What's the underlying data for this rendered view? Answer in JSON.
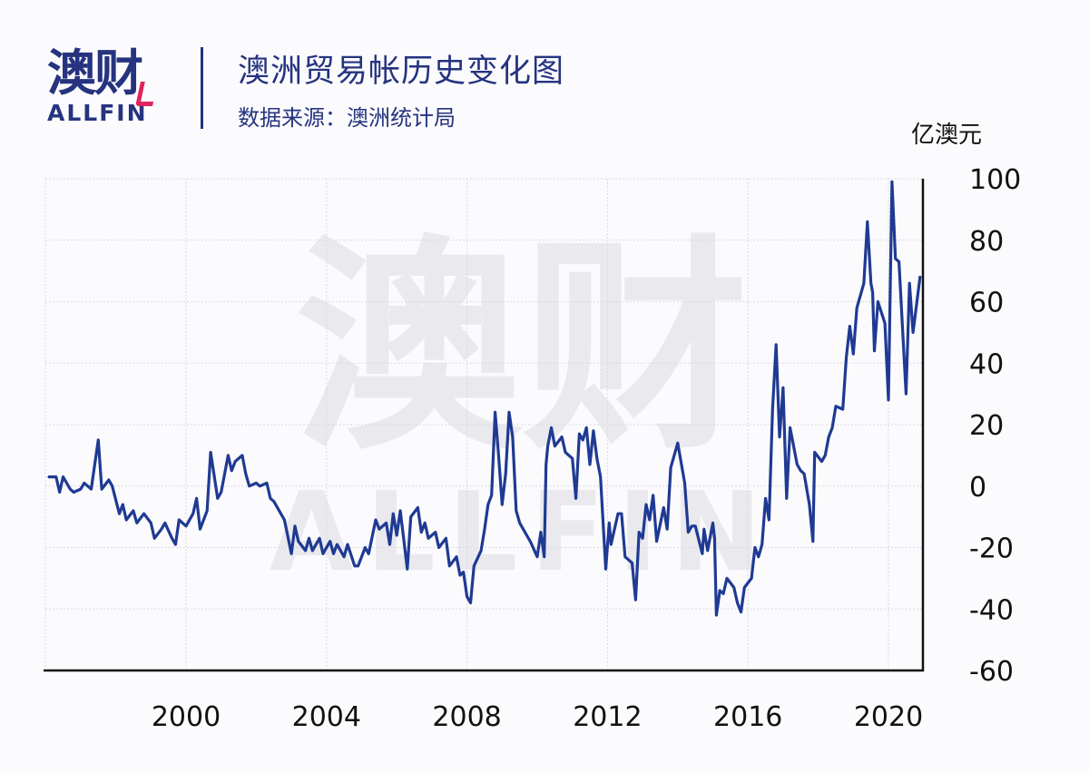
{
  "header": {
    "logo_cn": "澳财",
    "logo_en": "ALLFIN",
    "title": "澳洲贸易帐历史变化图",
    "subtitle": "数据来源：澳洲统计局"
  },
  "watermark": {
    "cn": "澳财",
    "en": "ALLFIN"
  },
  "colors": {
    "brand": "#26337f",
    "accent": "#e0245e",
    "line": "#1f3a93",
    "grid": "#d9d9e0",
    "watermark": "#e9e9ee"
  },
  "chart_data": {
    "type": "line",
    "title": "澳洲贸易帐历史变化图",
    "subtitle": "数据来源：澳洲统计局",
    "xlabel": "",
    "ylabel": "亿澳元",
    "ylim": [
      -60,
      100
    ],
    "xlim": [
      1996.0,
      2021.0
    ],
    "yticks": [
      100,
      80,
      60,
      40,
      20,
      0,
      -20,
      -40,
      -60
    ],
    "ytick_labels": [
      "100",
      "80",
      "60",
      "40",
      "20",
      "0",
      "-20",
      "-40",
      "-60"
    ],
    "xticks": [
      2000,
      2004,
      2008,
      2012,
      2016,
      2020
    ],
    "xtick_labels": [
      "2000",
      "2004",
      "2008",
      "2012",
      "2016",
      "2020"
    ],
    "y_axis_position": "right",
    "grid": true,
    "legend": null,
    "series": [
      {
        "name": "澳洲贸易帐",
        "x": [
          1996.1,
          1996.3,
          1996.4,
          1996.5,
          1996.7,
          1996.8,
          1997.0,
          1997.1,
          1997.3,
          1997.5,
          1997.6,
          1997.8,
          1997.9,
          1998.1,
          1998.2,
          1998.3,
          1998.5,
          1998.6,
          1998.8,
          1999.0,
          1999.1,
          1999.3,
          1999.4,
          1999.6,
          1999.7,
          1999.8,
          2000.0,
          2000.2,
          2000.3,
          2000.4,
          2000.6,
          2000.7,
          2000.9,
          2001.0,
          2001.2,
          2001.3,
          2001.4,
          2001.6,
          2001.7,
          2001.8,
          2002.0,
          2002.1,
          2002.3,
          2002.4,
          2002.5,
          2002.7,
          2002.8,
          2003.0,
          2003.1,
          2003.2,
          2003.4,
          2003.5,
          2003.6,
          2003.8,
          2003.9,
          2004.1,
          2004.2,
          2004.3,
          2004.5,
          2004.6,
          2004.8,
          2004.9,
          2005.1,
          2005.2,
          2005.4,
          2005.5,
          2005.7,
          2005.8,
          2005.9,
          2006.0,
          2006.1,
          2006.3,
          2006.4,
          2006.6,
          2006.7,
          2006.8,
          2006.9,
          2007.1,
          2007.2,
          2007.4,
          2007.5,
          2007.7,
          2007.8,
          2007.9,
          2008.0,
          2008.1,
          2008.2,
          2008.4,
          2008.5,
          2008.6,
          2008.7,
          2008.8,
          2008.9,
          2009.0,
          2009.1,
          2009.2,
          2009.3,
          2009.4,
          2009.5,
          2009.7,
          2009.8,
          2010.0,
          2010.1,
          2010.2,
          2010.25,
          2010.3,
          2010.4,
          2010.5,
          2010.7,
          2010.8,
          2011.0,
          2011.1,
          2011.2,
          2011.3,
          2011.4,
          2011.5,
          2011.6,
          2011.7,
          2011.8,
          2011.95,
          2012.05,
          2012.1,
          2012.3,
          2012.4,
          2012.5,
          2012.7,
          2012.8,
          2012.9,
          2013.0,
          2013.1,
          2013.2,
          2013.3,
          2013.4,
          2013.6,
          2013.7,
          2013.8,
          2014.0,
          2014.2,
          2014.3,
          2014.4,
          2014.5,
          2014.7,
          2014.75,
          2014.85,
          2015.0,
          2015.05,
          2015.1,
          2015.2,
          2015.3,
          2015.4,
          2015.6,
          2015.7,
          2015.8,
          2015.9,
          2016.1,
          2016.2,
          2016.3,
          2016.4,
          2016.5,
          2016.6,
          2016.7,
          2016.8,
          2016.9,
          2017.0,
          2017.1,
          2017.2,
          2017.4,
          2017.5,
          2017.6,
          2017.75,
          2017.85,
          2017.9,
          2018.1,
          2018.2,
          2018.3,
          2018.4,
          2018.5,
          2018.7,
          2018.8,
          2018.9,
          2019.0,
          2019.1,
          2019.3,
          2019.4,
          2019.5,
          2019.55,
          2019.6,
          2019.7,
          2019.9,
          2020.0,
          2020.1,
          2020.2,
          2020.3,
          2020.5,
          2020.6,
          2020.7,
          2020.9
        ],
        "values": [
          3,
          3,
          -2,
          3,
          -1,
          -2,
          -1,
          1,
          -1,
          15,
          -1,
          2,
          0,
          -9,
          -6,
          -11,
          -8,
          -12,
          -9,
          -12,
          -17,
          -14,
          -12,
          -17,
          -19,
          -11,
          -13,
          -9,
          -4,
          -14,
          -8,
          11,
          -4,
          -2,
          10,
          5,
          8,
          10,
          4,
          0,
          1,
          0,
          1,
          -4,
          -5,
          -9,
          -11,
          -22,
          -13,
          -18,
          -21,
          -17,
          -21,
          -17,
          -22,
          -18,
          -22,
          -19,
          -23,
          -19,
          -26,
          -26,
          -20,
          -22,
          -11,
          -14,
          -12,
          -19,
          -9,
          -16,
          -8,
          -27,
          -10,
          -7,
          -15,
          -12,
          -17,
          -15,
          -20,
          -17,
          -26,
          -23,
          -29,
          -28,
          -36,
          -38,
          -26,
          -21,
          -14,
          -6,
          -3,
          24,
          10,
          -6,
          4,
          24,
          16,
          -8,
          -12,
          -16,
          -18,
          -23,
          -15,
          -23,
          7,
          13,
          19,
          13,
          16,
          11,
          9,
          -4,
          17,
          15,
          19,
          7,
          18,
          9,
          3,
          -27,
          -12,
          -19,
          -9,
          -9,
          -23,
          -25,
          -37,
          -15,
          -17,
          -6,
          -11,
          -3,
          -18,
          -7,
          -14,
          6,
          14,
          1,
          -15,
          -13,
          -13,
          -22,
          -14,
          -21,
          -12,
          -17,
          -42,
          -34,
          -35,
          -30,
          -33,
          -38,
          -41,
          -33,
          -30,
          -20,
          -23,
          -19,
          -4,
          -11,
          25,
          46,
          16,
          32,
          -4,
          19,
          7,
          5,
          4,
          -6,
          -18,
          11,
          8,
          10,
          16,
          19,
          26,
          25,
          42,
          52,
          43,
          58,
          66,
          86,
          66,
          63,
          44,
          60,
          53,
          28,
          99,
          74,
          73,
          30,
          66,
          50,
          68
        ]
      }
    ]
  }
}
